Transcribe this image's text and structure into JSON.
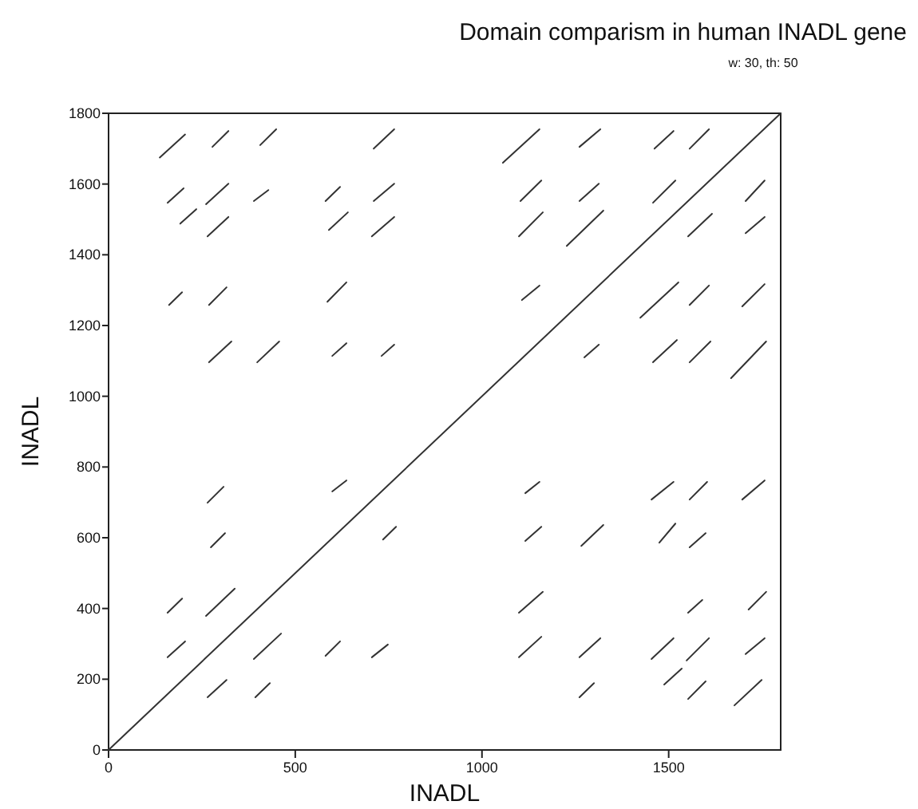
{
  "chart_data": {
    "type": "line",
    "title": "Domain comparism in human INADL gene",
    "subtitle": "w: 30, th: 50",
    "xlabel": "INADL",
    "ylabel": "INADL",
    "xlim": [
      0,
      1800
    ],
    "ylim": [
      0,
      1800
    ],
    "xticks": [
      0,
      500,
      1000,
      1500
    ],
    "yticks": [
      0,
      200,
      400,
      600,
      800,
      1000,
      1200,
      1400,
      1600,
      1800
    ],
    "series": [
      {
        "color": "#333333",
        "x": [
          0,
          1800
        ],
        "values": [
          0,
          1800
        ]
      },
      {
        "color": "#333333",
        "x": [
          137,
          205
        ],
        "values": [
          1675,
          1740
        ]
      },
      {
        "color": "#333333",
        "x": [
          278,
          321
        ],
        "values": [
          1705,
          1750
        ]
      },
      {
        "color": "#333333",
        "x": [
          406,
          449
        ],
        "values": [
          1710,
          1755
        ]
      },
      {
        "color": "#333333",
        "x": [
          710,
          765
        ],
        "values": [
          1700,
          1755
        ]
      },
      {
        "color": "#333333",
        "x": [
          158,
          201
        ],
        "values": [
          1547,
          1588
        ]
      },
      {
        "color": "#333333",
        "x": [
          261,
          321
        ],
        "values": [
          1543,
          1601
        ]
      },
      {
        "color": "#333333",
        "x": [
          389,
          428
        ],
        "values": [
          1552,
          1583
        ]
      },
      {
        "color": "#333333",
        "x": [
          581,
          620
        ],
        "values": [
          1552,
          1592
        ]
      },
      {
        "color": "#333333",
        "x": [
          710,
          765
        ],
        "values": [
          1552,
          1601
        ]
      },
      {
        "color": "#333333",
        "x": [
          192,
          235
        ],
        "values": [
          1488,
          1529
        ]
      },
      {
        "color": "#333333",
        "x": [
          265,
          321
        ],
        "values": [
          1452,
          1507
        ]
      },
      {
        "color": "#333333",
        "x": [
          590,
          641
        ],
        "values": [
          1470,
          1520
        ]
      },
      {
        "color": "#333333",
        "x": [
          705,
          765
        ],
        "values": [
          1452,
          1507
        ]
      },
      {
        "color": "#333333",
        "x": [
          162,
          197
        ],
        "values": [
          1258,
          1294
        ]
      },
      {
        "color": "#333333",
        "x": [
          269,
          316
        ],
        "values": [
          1258,
          1308
        ]
      },
      {
        "color": "#333333",
        "x": [
          586,
          637
        ],
        "values": [
          1267,
          1322
        ]
      },
      {
        "color": "#333333",
        "x": [
          269,
          329
        ],
        "values": [
          1096,
          1155
        ]
      },
      {
        "color": "#333333",
        "x": [
          398,
          457
        ],
        "values": [
          1096,
          1155
        ]
      },
      {
        "color": "#333333",
        "x": [
          599,
          637
        ],
        "values": [
          1114,
          1150
        ]
      },
      {
        "color": "#333333",
        "x": [
          731,
          765
        ],
        "values": [
          1114,
          1146
        ]
      },
      {
        "color": "#333333",
        "x": [
          1056,
          1154
        ],
        "values": [
          1660,
          1755
        ]
      },
      {
        "color": "#333333",
        "x": [
          1261,
          1317
        ],
        "values": [
          1705,
          1755
        ]
      },
      {
        "color": "#333333",
        "x": [
          1462,
          1513
        ],
        "values": [
          1700,
          1750
        ]
      },
      {
        "color": "#333333",
        "x": [
          1556,
          1608
        ],
        "values": [
          1700,
          1755
        ]
      },
      {
        "color": "#333333",
        "x": [
          1103,
          1159
        ],
        "values": [
          1552,
          1610
        ]
      },
      {
        "color": "#333333",
        "x": [
          1261,
          1313
        ],
        "values": [
          1552,
          1601
        ]
      },
      {
        "color": "#333333",
        "x": [
          1458,
          1518
        ],
        "values": [
          1547,
          1610
        ]
      },
      {
        "color": "#333333",
        "x": [
          1706,
          1757
        ],
        "values": [
          1552,
          1610
        ]
      },
      {
        "color": "#333333",
        "x": [
          1099,
          1163
        ],
        "values": [
          1452,
          1520
        ]
      },
      {
        "color": "#333333",
        "x": [
          1227,
          1325
        ],
        "values": [
          1425,
          1525
        ]
      },
      {
        "color": "#333333",
        "x": [
          1552,
          1616
        ],
        "values": [
          1452,
          1516
        ]
      },
      {
        "color": "#333333",
        "x": [
          1706,
          1757
        ],
        "values": [
          1461,
          1507
        ]
      },
      {
        "color": "#333333",
        "x": [
          1107,
          1154
        ],
        "values": [
          1272,
          1313
        ]
      },
      {
        "color": "#333333",
        "x": [
          1424,
          1526
        ],
        "values": [
          1222,
          1322
        ]
      },
      {
        "color": "#333333",
        "x": [
          1556,
          1608
        ],
        "values": [
          1258,
          1313
        ]
      },
      {
        "color": "#333333",
        "x": [
          1697,
          1757
        ],
        "values": [
          1254,
          1317
        ]
      },
      {
        "color": "#333333",
        "x": [
          1274,
          1313
        ],
        "values": [
          1110,
          1146
        ]
      },
      {
        "color": "#333333",
        "x": [
          1458,
          1522
        ],
        "values": [
          1096,
          1159
        ]
      },
      {
        "color": "#333333",
        "x": [
          1556,
          1612
        ],
        "values": [
          1096,
          1155
        ]
      },
      {
        "color": "#333333",
        "x": [
          1667,
          1761
        ],
        "values": [
          1051,
          1155
        ]
      },
      {
        "color": "#333333",
        "x": [
          265,
          308
        ],
        "values": [
          699,
          744
        ]
      },
      {
        "color": "#333333",
        "x": [
          599,
          637
        ],
        "values": [
          731,
          762
        ]
      },
      {
        "color": "#333333",
        "x": [
          274,
          312
        ],
        "values": [
          573,
          613
        ]
      },
      {
        "color": "#333333",
        "x": [
          735,
          770
        ],
        "values": [
          595,
          631
        ]
      },
      {
        "color": "#333333",
        "x": [
          158,
          197
        ],
        "values": [
          388,
          428
        ]
      },
      {
        "color": "#333333",
        "x": [
          261,
          338
        ],
        "values": [
          379,
          456
        ]
      },
      {
        "color": "#333333",
        "x": [
          158,
          205
        ],
        "values": [
          262,
          307
        ]
      },
      {
        "color": "#333333",
        "x": [
          389,
          462
        ],
        "values": [
          257,
          329
        ]
      },
      {
        "color": "#333333",
        "x": [
          581,
          620
        ],
        "values": [
          266,
          307
        ]
      },
      {
        "color": "#333333",
        "x": [
          705,
          748
        ],
        "values": [
          262,
          298
        ]
      },
      {
        "color": "#333333",
        "x": [
          265,
          316
        ],
        "values": [
          149,
          198
        ]
      },
      {
        "color": "#333333",
        "x": [
          393,
          432
        ],
        "values": [
          149,
          189
        ]
      },
      {
        "color": "#333333",
        "x": [
          1116,
          1154
        ],
        "values": [
          726,
          758
        ]
      },
      {
        "color": "#333333",
        "x": [
          1454,
          1513
        ],
        "values": [
          708,
          758
        ]
      },
      {
        "color": "#333333",
        "x": [
          1556,
          1603
        ],
        "values": [
          708,
          758
        ]
      },
      {
        "color": "#333333",
        "x": [
          1697,
          1757
        ],
        "values": [
          708,
          762
        ]
      },
      {
        "color": "#333333",
        "x": [
          1116,
          1159
        ],
        "values": [
          591,
          631
        ]
      },
      {
        "color": "#333333",
        "x": [
          1266,
          1325
        ],
        "values": [
          577,
          636
        ]
      },
      {
        "color": "#333333",
        "x": [
          1475,
          1518
        ],
        "values": [
          586,
          640
        ]
      },
      {
        "color": "#333333",
        "x": [
          1556,
          1599
        ],
        "values": [
          573,
          613
        ]
      },
      {
        "color": "#333333",
        "x": [
          1099,
          1163
        ],
        "values": [
          388,
          447
        ]
      },
      {
        "color": "#333333",
        "x": [
          1552,
          1590
        ],
        "values": [
          388,
          424
        ]
      },
      {
        "color": "#333333",
        "x": [
          1714,
          1761
        ],
        "values": [
          397,
          447
        ]
      },
      {
        "color": "#333333",
        "x": [
          1099,
          1159
        ],
        "values": [
          262,
          320
        ]
      },
      {
        "color": "#333333",
        "x": [
          1261,
          1317
        ],
        "values": [
          262,
          316
        ]
      },
      {
        "color": "#333333",
        "x": [
          1454,
          1513
        ],
        "values": [
          257,
          316
        ]
      },
      {
        "color": "#333333",
        "x": [
          1548,
          1608
        ],
        "values": [
          253,
          316
        ]
      },
      {
        "color": "#333333",
        "x": [
          1706,
          1757
        ],
        "values": [
          271,
          316
        ]
      },
      {
        "color": "#333333",
        "x": [
          1261,
          1300
        ],
        "values": [
          149,
          189
        ]
      },
      {
        "color": "#333333",
        "x": [
          1488,
          1535
        ],
        "values": [
          185,
          230
        ]
      },
      {
        "color": "#333333",
        "x": [
          1552,
          1599
        ],
        "values": [
          144,
          194
        ]
      },
      {
        "color": "#333333",
        "x": [
          1676,
          1749
        ],
        "values": [
          126,
          198
        ]
      }
    ]
  }
}
